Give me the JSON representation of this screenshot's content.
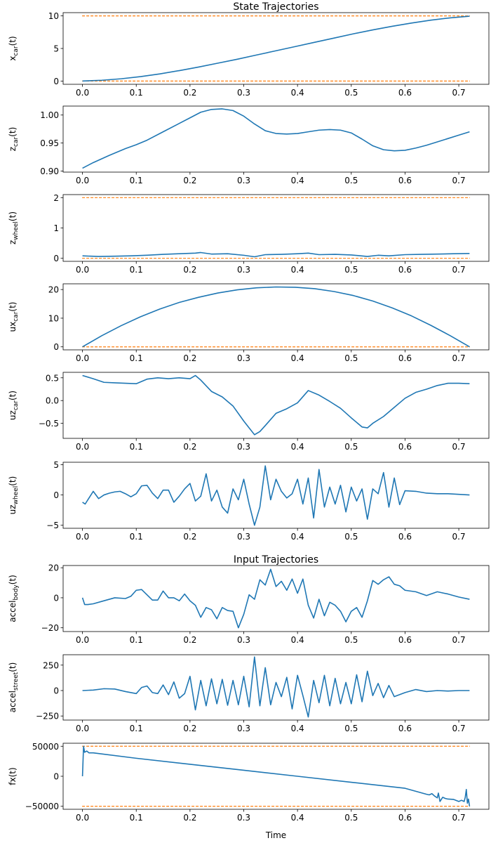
{
  "chart_data": [
    {
      "type": "line",
      "title": "State Trajectories",
      "ylabel": "x_car(t)",
      "ylabel_main": "x",
      "ylabel_sub": "car",
      "xlabel": "",
      "xlim": [
        -0.036,
        0.756
      ],
      "ylim": [
        -0.5,
        10.5
      ],
      "yticks": [
        0,
        5,
        10
      ],
      "xticks": [
        0.0,
        0.1,
        0.2,
        0.3,
        0.4,
        0.5,
        0.6,
        0.7
      ],
      "bounds": [
        0,
        10
      ],
      "series": [
        {
          "x": [
            0.0,
            0.036,
            0.072,
            0.108,
            0.144,
            0.18,
            0.216,
            0.252,
            0.288,
            0.324,
            0.36,
            0.396,
            0.432,
            0.468,
            0.504,
            0.54,
            0.576,
            0.612,
            0.648,
            0.684,
            0.72
          ],
          "y": [
            0.0,
            0.12,
            0.35,
            0.68,
            1.1,
            1.6,
            2.15,
            2.75,
            3.35,
            4.0,
            4.65,
            5.3,
            5.95,
            6.6,
            7.25,
            7.85,
            8.4,
            8.9,
            9.35,
            9.7,
            9.95
          ]
        }
      ]
    },
    {
      "type": "line",
      "title": "",
      "ylabel": "z_car(t)",
      "ylabel_main": "z",
      "ylabel_sub": "car",
      "xlabel": "",
      "xlim": [
        -0.036,
        0.756
      ],
      "ylim": [
        0.898,
        1.016
      ],
      "yticks": [
        0.9,
        0.95,
        1.0
      ],
      "ytick_labels": [
        "0.90",
        "0.95",
        "1.00"
      ],
      "xticks": [
        0.0,
        0.1,
        0.2,
        0.3,
        0.4,
        0.5,
        0.6,
        0.7
      ],
      "series": [
        {
          "x": [
            0.0,
            0.02,
            0.05,
            0.08,
            0.1,
            0.12,
            0.15,
            0.18,
            0.2,
            0.22,
            0.24,
            0.26,
            0.28,
            0.3,
            0.32,
            0.34,
            0.36,
            0.38,
            0.4,
            0.42,
            0.44,
            0.46,
            0.48,
            0.5,
            0.52,
            0.54,
            0.56,
            0.58,
            0.6,
            0.62,
            0.64,
            0.66,
            0.68,
            0.7,
            0.72
          ],
          "y": [
            0.905,
            0.915,
            0.928,
            0.94,
            0.947,
            0.955,
            0.97,
            0.985,
            0.995,
            1.005,
            1.01,
            1.011,
            1.008,
            0.998,
            0.984,
            0.972,
            0.967,
            0.966,
            0.967,
            0.97,
            0.973,
            0.974,
            0.973,
            0.968,
            0.957,
            0.945,
            0.938,
            0.936,
            0.937,
            0.941,
            0.946,
            0.952,
            0.958,
            0.964,
            0.97
          ]
        }
      ]
    },
    {
      "type": "line",
      "title": "",
      "ylabel": "z_wheel(t)",
      "ylabel_main": "z",
      "ylabel_sub": "wheel",
      "xlabel": "",
      "xlim": [
        -0.036,
        0.756
      ],
      "ylim": [
        -0.1,
        2.1
      ],
      "yticks": [
        0,
        1,
        2
      ],
      "xticks": [
        0.0,
        0.1,
        0.2,
        0.3,
        0.4,
        0.5,
        0.6,
        0.7
      ],
      "bounds": [
        0,
        2
      ],
      "series": [
        {
          "x": [
            0.0,
            0.03,
            0.06,
            0.09,
            0.12,
            0.15,
            0.18,
            0.21,
            0.22,
            0.24,
            0.27,
            0.3,
            0.32,
            0.34,
            0.37,
            0.4,
            0.42,
            0.44,
            0.47,
            0.5,
            0.53,
            0.55,
            0.57,
            0.6,
            0.63,
            0.66,
            0.69,
            0.72
          ],
          "y": [
            0.08,
            0.06,
            0.07,
            0.08,
            0.1,
            0.13,
            0.15,
            0.17,
            0.19,
            0.14,
            0.15,
            0.1,
            0.05,
            0.12,
            0.13,
            0.15,
            0.17,
            0.12,
            0.13,
            0.11,
            0.06,
            0.1,
            0.08,
            0.12,
            0.13,
            0.14,
            0.15,
            0.16
          ]
        }
      ]
    },
    {
      "type": "line",
      "title": "",
      "ylabel": "ux_car(t)",
      "ylabel_main": "ux",
      "ylabel_sub": "car",
      "xlabel": "",
      "xlim": [
        -0.036,
        0.756
      ],
      "ylim": [
        -1.05,
        22.0
      ],
      "yticks": [
        0,
        10,
        20
      ],
      "xticks": [
        0.0,
        0.1,
        0.2,
        0.3,
        0.4,
        0.5,
        0.6,
        0.7
      ],
      "bounds": [
        0
      ],
      "series": [
        {
          "x": [
            0.0,
            0.036,
            0.072,
            0.108,
            0.144,
            0.18,
            0.216,
            0.252,
            0.288,
            0.324,
            0.36,
            0.396,
            0.432,
            0.468,
            0.504,
            0.54,
            0.576,
            0.612,
            0.648,
            0.684,
            0.72
          ],
          "y": [
            0.0,
            3.9,
            7.4,
            10.5,
            13.2,
            15.5,
            17.3,
            18.8,
            19.9,
            20.6,
            20.9,
            20.8,
            20.3,
            19.3,
            17.9,
            16.0,
            13.6,
            10.8,
            7.5,
            3.9,
            0.0
          ]
        }
      ]
    },
    {
      "type": "line",
      "title": "",
      "ylabel": "uz_car(t)",
      "ylabel_main": "uz",
      "ylabel_sub": "car",
      "xlabel": "",
      "xlim": [
        -0.036,
        0.756
      ],
      "ylim": [
        -0.83,
        0.62
      ],
      "yticks": [
        -0.5,
        0.0,
        0.5
      ],
      "ytick_labels": [
        "−0.5",
        "0.0",
        "0.5"
      ],
      "xticks": [
        0.0,
        0.1,
        0.2,
        0.3,
        0.4,
        0.5,
        0.6,
        0.7
      ],
      "series": [
        {
          "x": [
            0.0,
            0.02,
            0.04,
            0.06,
            0.08,
            0.1,
            0.12,
            0.14,
            0.16,
            0.18,
            0.2,
            0.21,
            0.22,
            0.24,
            0.26,
            0.28,
            0.3,
            0.31,
            0.32,
            0.33,
            0.34,
            0.36,
            0.38,
            0.4,
            0.42,
            0.44,
            0.46,
            0.48,
            0.5,
            0.52,
            0.53,
            0.54,
            0.56,
            0.58,
            0.6,
            0.62,
            0.64,
            0.66,
            0.68,
            0.7,
            0.72
          ],
          "y": [
            0.55,
            0.48,
            0.4,
            0.39,
            0.38,
            0.37,
            0.47,
            0.5,
            0.48,
            0.5,
            0.48,
            0.55,
            0.45,
            0.2,
            0.08,
            -0.12,
            -0.45,
            -0.6,
            -0.75,
            -0.68,
            -0.55,
            -0.28,
            -0.18,
            -0.05,
            0.22,
            0.12,
            -0.02,
            -0.17,
            -0.38,
            -0.58,
            -0.6,
            -0.5,
            -0.35,
            -0.15,
            0.05,
            0.18,
            0.25,
            0.33,
            0.38,
            0.38,
            0.37
          ]
        }
      ]
    },
    {
      "type": "line",
      "title": "",
      "ylabel": "uz_wheel(t)",
      "ylabel_main": "uz",
      "ylabel_sub": "wheel",
      "xlabel": "",
      "xlim": [
        -0.036,
        0.756
      ],
      "ylim": [
        -5.5,
        5.4
      ],
      "yticks": [
        -5,
        0,
        5
      ],
      "ytick_labels": [
        "−5",
        "0",
        "5"
      ],
      "xticks": [
        0.0,
        0.1,
        0.2,
        0.3,
        0.4,
        0.5,
        0.6,
        0.7
      ],
      "series": [
        {
          "x": [
            0.0,
            0.005,
            0.01,
            0.02,
            0.03,
            0.04,
            0.05,
            0.06,
            0.07,
            0.08,
            0.09,
            0.1,
            0.11,
            0.12,
            0.13,
            0.14,
            0.15,
            0.16,
            0.17,
            0.18,
            0.19,
            0.2,
            0.21,
            0.22,
            0.23,
            0.24,
            0.25,
            0.26,
            0.27,
            0.28,
            0.29,
            0.3,
            0.31,
            0.32,
            0.33,
            0.34,
            0.35,
            0.36,
            0.37,
            0.38,
            0.39,
            0.4,
            0.41,
            0.42,
            0.43,
            0.44,
            0.45,
            0.46,
            0.47,
            0.48,
            0.49,
            0.5,
            0.51,
            0.52,
            0.53,
            0.54,
            0.55,
            0.56,
            0.57,
            0.58,
            0.59,
            0.6,
            0.62,
            0.64,
            0.66,
            0.68,
            0.7,
            0.72
          ],
          "y": [
            -1.2,
            -1.5,
            -0.8,
            0.6,
            -0.6,
            0.0,
            0.3,
            0.5,
            0.6,
            0.2,
            -0.3,
            0.2,
            1.5,
            1.6,
            0.3,
            -0.6,
            0.8,
            0.8,
            -1.2,
            -0.2,
            1.0,
            1.9,
            -1.0,
            -0.2,
            3.5,
            -1.0,
            0.8,
            -2.0,
            -3.0,
            1.0,
            -0.8,
            2.6,
            -1.5,
            -5.0,
            -2.0,
            4.8,
            -0.8,
            2.6,
            0.6,
            -0.5,
            0.2,
            2.6,
            -1.5,
            2.8,
            -3.8,
            4.2,
            -2.0,
            1.3,
            -1.5,
            1.6,
            -2.8,
            1.3,
            -1.0,
            1.0,
            -4.0,
            1.0,
            0.2,
            3.7,
            -2.0,
            2.8,
            -1.6,
            0.7,
            0.6,
            0.3,
            0.2,
            0.2,
            0.1,
            0.0
          ]
        }
      ]
    },
    {
      "type": "line",
      "title": "Input Trajectories",
      "ylabel": "accel_body(t)",
      "ylabel_main": "accel",
      "ylabel_sub": "body",
      "xlabel": "",
      "xlim": [
        -0.036,
        0.756
      ],
      "ylim": [
        -22.5,
        21.5
      ],
      "yticks": [
        -20,
        0,
        20
      ],
      "ytick_labels": [
        "−20",
        "0",
        "20"
      ],
      "xticks": [
        0.0,
        0.1,
        0.2,
        0.3,
        0.4,
        0.5,
        0.6,
        0.7
      ],
      "series": [
        {
          "x": [
            0.0,
            0.004,
            0.01,
            0.02,
            0.04,
            0.06,
            0.08,
            0.09,
            0.1,
            0.11,
            0.12,
            0.13,
            0.14,
            0.15,
            0.16,
            0.17,
            0.18,
            0.19,
            0.2,
            0.21,
            0.22,
            0.23,
            0.24,
            0.25,
            0.26,
            0.27,
            0.28,
            0.29,
            0.3,
            0.31,
            0.32,
            0.33,
            0.34,
            0.35,
            0.36,
            0.37,
            0.38,
            0.39,
            0.4,
            0.41,
            0.42,
            0.43,
            0.44,
            0.45,
            0.46,
            0.47,
            0.48,
            0.49,
            0.5,
            0.51,
            0.52,
            0.53,
            0.54,
            0.55,
            0.56,
            0.57,
            0.58,
            0.59,
            0.6,
            0.62,
            0.64,
            0.66,
            0.68,
            0.7,
            0.72
          ],
          "y": [
            0.0,
            -4.5,
            -4.5,
            -4.0,
            -2.0,
            0.0,
            -0.5,
            1.0,
            5.0,
            5.5,
            2.0,
            -1.5,
            -1.5,
            4.5,
            0.0,
            0.0,
            -2.0,
            2.5,
            -2.0,
            -5.0,
            -13.0,
            -6.5,
            -8.0,
            -14.0,
            -6.5,
            -8.5,
            -9.0,
            -20.0,
            -11.0,
            2.0,
            -1.0,
            12.0,
            8.5,
            19.0,
            7.5,
            11.0,
            5.0,
            12.5,
            3.0,
            12.5,
            -5.0,
            -13.5,
            -1.0,
            -12.0,
            -3.0,
            -5.0,
            -9.0,
            -16.0,
            -9.0,
            -6.5,
            -13.0,
            -2.0,
            11.5,
            9.0,
            12.0,
            14.0,
            9.0,
            8.0,
            5.0,
            4.0,
            1.5,
            4.0,
            2.5,
            0.5,
            -1.0
          ]
        }
      ]
    },
    {
      "type": "line",
      "title": "",
      "ylabel": "accel_street(t)",
      "ylabel_main": "accel",
      "ylabel_sub": "street",
      "xlabel": "",
      "xlim": [
        -0.036,
        0.756
      ],
      "ylim": [
        -290,
        352
      ],
      "yticks": [
        -250,
        0,
        250
      ],
      "ytick_labels": [
        "−250",
        "0",
        "250"
      ],
      "xticks": [
        0.0,
        0.1,
        0.2,
        0.3,
        0.4,
        0.5,
        0.6,
        0.7
      ],
      "series": [
        {
          "x": [
            0.0,
            0.02,
            0.04,
            0.06,
            0.08,
            0.1,
            0.11,
            0.12,
            0.13,
            0.14,
            0.15,
            0.16,
            0.17,
            0.18,
            0.19,
            0.2,
            0.21,
            0.22,
            0.23,
            0.24,
            0.25,
            0.26,
            0.27,
            0.28,
            0.29,
            0.3,
            0.31,
            0.32,
            0.33,
            0.34,
            0.35,
            0.36,
            0.37,
            0.38,
            0.39,
            0.4,
            0.41,
            0.42,
            0.43,
            0.44,
            0.45,
            0.46,
            0.47,
            0.48,
            0.49,
            0.5,
            0.51,
            0.52,
            0.53,
            0.54,
            0.55,
            0.56,
            0.57,
            0.58,
            0.59,
            0.6,
            0.62,
            0.64,
            0.66,
            0.68,
            0.7,
            0.72
          ],
          "y": [
            0.0,
            5.0,
            18.0,
            15.0,
            -10.0,
            -30.0,
            30.0,
            45.0,
            -20.0,
            -30.0,
            55.0,
            -40.0,
            85.0,
            -75.0,
            -30.0,
            140.0,
            -190.0,
            100.0,
            -150.0,
            115.0,
            -130.0,
            110.0,
            -145.0,
            100.0,
            -140.0,
            140.0,
            -160.0,
            330.0,
            -150.0,
            225.0,
            -140.0,
            80.0,
            -60.0,
            130.0,
            -180.0,
            150.0,
            -50.0,
            -260.0,
            100.0,
            -120.0,
            150.0,
            -150.0,
            120.0,
            -130.0,
            80.0,
            -130.0,
            155.0,
            -110.0,
            190.0,
            -50.0,
            70.0,
            -70.0,
            50.0,
            -60.0,
            -40.0,
            -20.0,
            10.0,
            -10.0,
            0.0,
            -5.0,
            0.0,
            0.0
          ]
        }
      ]
    },
    {
      "type": "line",
      "title": "",
      "ylabel": "fx(t)",
      "ylabel_main": "fx",
      "ylabel_sub": "",
      "xlabel": "Time",
      "xlim": [
        -0.036,
        0.756
      ],
      "ylim": [
        -55000,
        55000
      ],
      "yticks": [
        -50000,
        0,
        50000
      ],
      "ytick_labels": [
        "−50000",
        "0",
        "50000"
      ],
      "xticks": [
        0.0,
        0.1,
        0.2,
        0.3,
        0.4,
        0.5,
        0.6,
        0.7
      ],
      "xtick_labels": [
        "0.0",
        "0.1",
        "0.2",
        "0.3",
        "0.4",
        "0.5",
        "0.6",
        "0.7"
      ],
      "bounds": [
        -50000,
        50000
      ],
      "series": [
        {
          "x": [
            0.0,
            0.002,
            0.004,
            0.008,
            0.012,
            0.02,
            0.1,
            0.2,
            0.3,
            0.4,
            0.5,
            0.6,
            0.64,
            0.645,
            0.65,
            0.655,
            0.66,
            0.662,
            0.665,
            0.67,
            0.675,
            0.68,
            0.69,
            0.7,
            0.705,
            0.71,
            0.712,
            0.714,
            0.716,
            0.718,
            0.72
          ],
          "y": [
            0.0,
            50000,
            40000,
            42000,
            39000,
            39000,
            30000,
            20000,
            10000,
            0,
            -10000,
            -20000,
            -30000,
            -31000,
            -29000,
            -33000,
            -36000,
            -28000,
            -42000,
            -35000,
            -37000,
            -38000,
            -38500,
            -42000,
            -40000,
            -42000,
            -35000,
            -22000,
            -45000,
            -38000,
            -50000
          ]
        }
      ]
    }
  ],
  "colors": {
    "series": "#1f77b4",
    "bounds": "#ff7f0e"
  }
}
